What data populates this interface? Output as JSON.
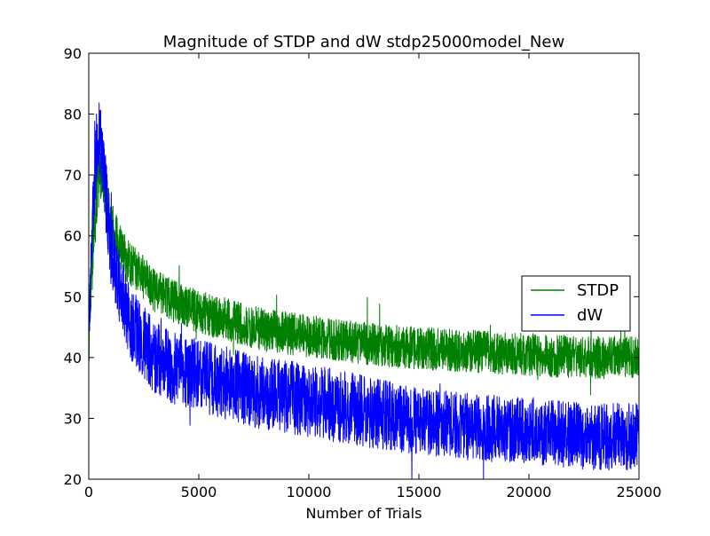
{
  "chart_data": {
    "type": "line",
    "title": "Magnitude of STDP and dW stdp25000model_New",
    "xlabel": "Number of Trials",
    "ylabel": "",
    "xlim": [
      0,
      25000
    ],
    "ylim": [
      20,
      90
    ],
    "xticks": [
      0,
      5000,
      10000,
      15000,
      20000,
      25000
    ],
    "yticks": [
      20,
      30,
      40,
      50,
      60,
      70,
      80,
      90
    ],
    "x_tick_labels": [
      "0",
      "5000",
      "10000",
      "15000",
      "20000",
      "25000"
    ],
    "y_tick_labels": [
      "20",
      "30",
      "40",
      "50",
      "60",
      "70",
      "80",
      "90"
    ],
    "grid": false,
    "legend": {
      "position": "center-right",
      "entries": [
        "STDP",
        "dW"
      ]
    },
    "series": [
      {
        "name": "STDP",
        "color": "#008000",
        "x": [
          0,
          200,
          400,
          600,
          800,
          1000,
          1500,
          2000,
          3000,
          4000,
          5000,
          6000,
          7000,
          8000,
          10000,
          12000,
          15000,
          17500,
          20000,
          22500,
          25000
        ],
        "y": [
          44,
          60,
          69,
          71,
          67,
          62,
          57,
          55,
          51,
          49,
          47.5,
          46.5,
          45.5,
          44.5,
          43.5,
          42.5,
          41.5,
          41,
          40.5,
          40,
          40
        ],
        "noise": [
          6,
          6,
          6,
          5,
          5,
          4.5,
          4,
          3.5,
          3.5,
          3.5,
          3.5,
          3.5,
          3.5,
          3.5,
          3.5,
          3.5,
          3.5,
          3.5,
          3.5,
          3.5,
          3.5
        ]
      },
      {
        "name": "dW",
        "color": "#0000ff",
        "x": [
          0,
          200,
          400,
          600,
          800,
          1000,
          1500,
          2000,
          3000,
          4000,
          5000,
          6000,
          7000,
          8000,
          10000,
          12000,
          15000,
          17500,
          20000,
          22500,
          25000
        ],
        "y": [
          44,
          65,
          77,
          74,
          66,
          58,
          50,
          45,
          40,
          38,
          37,
          36,
          35,
          34,
          33,
          31.5,
          29.5,
          28.5,
          28,
          27,
          27
        ],
        "noise": [
          6,
          6,
          6,
          6,
          6,
          6,
          6,
          6,
          6,
          6,
          6,
          6,
          6,
          6,
          6,
          6,
          5.5,
          5.5,
          5.5,
          5.5,
          5.5
        ]
      }
    ]
  }
}
